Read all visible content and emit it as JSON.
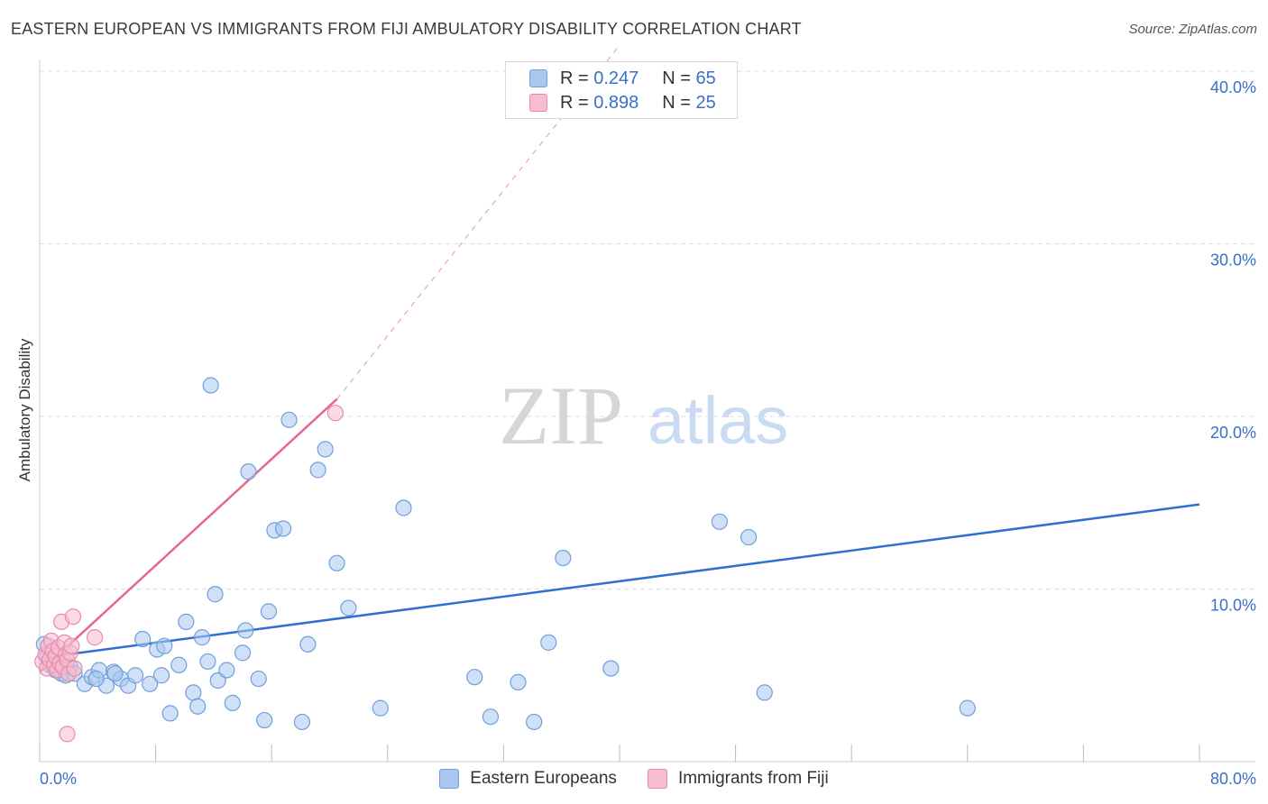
{
  "title": "EASTERN EUROPEAN VS IMMIGRANTS FROM FIJI AMBULATORY DISABILITY CORRELATION CHART",
  "source": "Source: ZipAtlas.com",
  "watermark": {
    "zip": "ZIP",
    "atlas": "atlas"
  },
  "legend_top": [
    {
      "r_label": "R =",
      "r_value": "0.247",
      "n_label": "N =",
      "n_value": "65"
    },
    {
      "r_label": "R =",
      "r_value": "0.898",
      "n_label": "N =",
      "n_value": "25"
    }
  ],
  "colors": {
    "blue_fill": "#a9c8f0",
    "blue_stroke": "#6f9fdc",
    "blue_line": "#2f6fd0",
    "pink_fill": "#f7bcd0",
    "pink_stroke": "#e88aab",
    "pink_line": "#e5678f",
    "grid": "#dddddd",
    "tick_text": "#3a6fc8"
  },
  "chart_data": {
    "type": "scatter",
    "title": "EASTERN EUROPEAN VS IMMIGRANTS FROM FIJI AMBULATORY DISABILITY CORRELATION CHART",
    "xlabel": "",
    "ylabel": "Ambulatory Disability",
    "xlim": [
      0,
      80
    ],
    "ylim": [
      0,
      42
    ],
    "x_tick_labels": [
      "0.0%",
      "80.0%"
    ],
    "y_ticks": [
      10,
      20,
      30,
      40
    ],
    "y_tick_labels": [
      "10.0%",
      "20.0%",
      "30.0%",
      "40.0%"
    ],
    "series": [
      {
        "name": "Eastern Europeans",
        "r": 0.247,
        "n": 65,
        "trend": {
          "x0": 0,
          "y0": 6.0,
          "x1": 80,
          "y1": 14.9
        },
        "points": [
          [
            0.3,
            6.8
          ],
          [
            0.5,
            6.1
          ],
          [
            0.7,
            5.6
          ],
          [
            0.9,
            5.9
          ],
          [
            1.1,
            5.3
          ],
          [
            1.3,
            5.7
          ],
          [
            1.5,
            5.1
          ],
          [
            1.8,
            5.0
          ],
          [
            2.1,
            5.5
          ],
          [
            2.4,
            5.1
          ],
          [
            3.1,
            4.5
          ],
          [
            3.6,
            4.9
          ],
          [
            4.1,
            5.3
          ],
          [
            4.6,
            4.4
          ],
          [
            5.1,
            5.2
          ],
          [
            5.6,
            4.8
          ],
          [
            6.1,
            4.4
          ],
          [
            6.6,
            5.0
          ],
          [
            7.1,
            7.1
          ],
          [
            7.6,
            4.5
          ],
          [
            8.1,
            6.5
          ],
          [
            8.6,
            6.7
          ],
          [
            8.4,
            5.0
          ],
          [
            9.0,
            2.8
          ],
          [
            9.6,
            5.6
          ],
          [
            10.1,
            8.1
          ],
          [
            10.6,
            4.0
          ],
          [
            10.9,
            3.2
          ],
          [
            11.2,
            7.2
          ],
          [
            11.6,
            5.8
          ],
          [
            12.1,
            9.7
          ],
          [
            12.3,
            4.7
          ],
          [
            12.9,
            5.3
          ],
          [
            13.3,
            3.4
          ],
          [
            14.0,
            6.3
          ],
          [
            14.2,
            7.6
          ],
          [
            14.4,
            16.8
          ],
          [
            15.1,
            4.8
          ],
          [
            15.5,
            2.4
          ],
          [
            15.8,
            8.7
          ],
          [
            16.2,
            13.4
          ],
          [
            16.8,
            13.5
          ],
          [
            17.2,
            19.8
          ],
          [
            18.1,
            2.3
          ],
          [
            18.5,
            6.8
          ],
          [
            19.2,
            16.9
          ],
          [
            19.7,
            18.1
          ],
          [
            20.5,
            11.5
          ],
          [
            21.3,
            8.9
          ],
          [
            23.5,
            3.1
          ],
          [
            25.1,
            14.7
          ],
          [
            30.0,
            4.9
          ],
          [
            31.1,
            2.6
          ],
          [
            33.0,
            4.6
          ],
          [
            34.1,
            2.3
          ],
          [
            35.1,
            6.9
          ],
          [
            36.1,
            11.8
          ],
          [
            39.4,
            5.4
          ],
          [
            46.9,
            13.9
          ],
          [
            50.0,
            4.0
          ],
          [
            48.9,
            13.0
          ],
          [
            64.0,
            3.1
          ],
          [
            11.8,
            21.8
          ],
          [
            5.2,
            5.1
          ],
          [
            3.9,
            4.8
          ]
        ]
      },
      {
        "name": "Immigrants from Fiji",
        "r": 0.898,
        "n": 25,
        "trend": {
          "x0": 0,
          "y0": 5.2,
          "x1": 20.5,
          "y1": 21.0
        },
        "trend_extension": {
          "x0": 20.5,
          "y0": 21.0,
          "x1": 40,
          "y1": 41.5
        },
        "points": [
          [
            0.2,
            5.8
          ],
          [
            0.4,
            6.2
          ],
          [
            0.5,
            5.4
          ],
          [
            0.6,
            6.7
          ],
          [
            0.7,
            5.9
          ],
          [
            0.8,
            7.0
          ],
          [
            0.9,
            6.4
          ],
          [
            1.0,
            5.6
          ],
          [
            1.1,
            6.1
          ],
          [
            1.2,
            5.3
          ],
          [
            1.3,
            6.6
          ],
          [
            1.4,
            5.7
          ],
          [
            1.5,
            8.1
          ],
          [
            1.6,
            5.5
          ],
          [
            1.7,
            6.9
          ],
          [
            1.8,
            6.2
          ],
          [
            1.9,
            5.9
          ],
          [
            2.0,
            5.1
          ],
          [
            2.1,
            6.3
          ],
          [
            2.2,
            6.7
          ],
          [
            2.3,
            8.4
          ],
          [
            2.4,
            5.4
          ],
          [
            3.8,
            7.2
          ],
          [
            20.4,
            20.2
          ],
          [
            1.9,
            1.6
          ]
        ]
      }
    ]
  },
  "legend_bottom": [
    "Eastern Europeans",
    "Immigrants from Fiji"
  ]
}
